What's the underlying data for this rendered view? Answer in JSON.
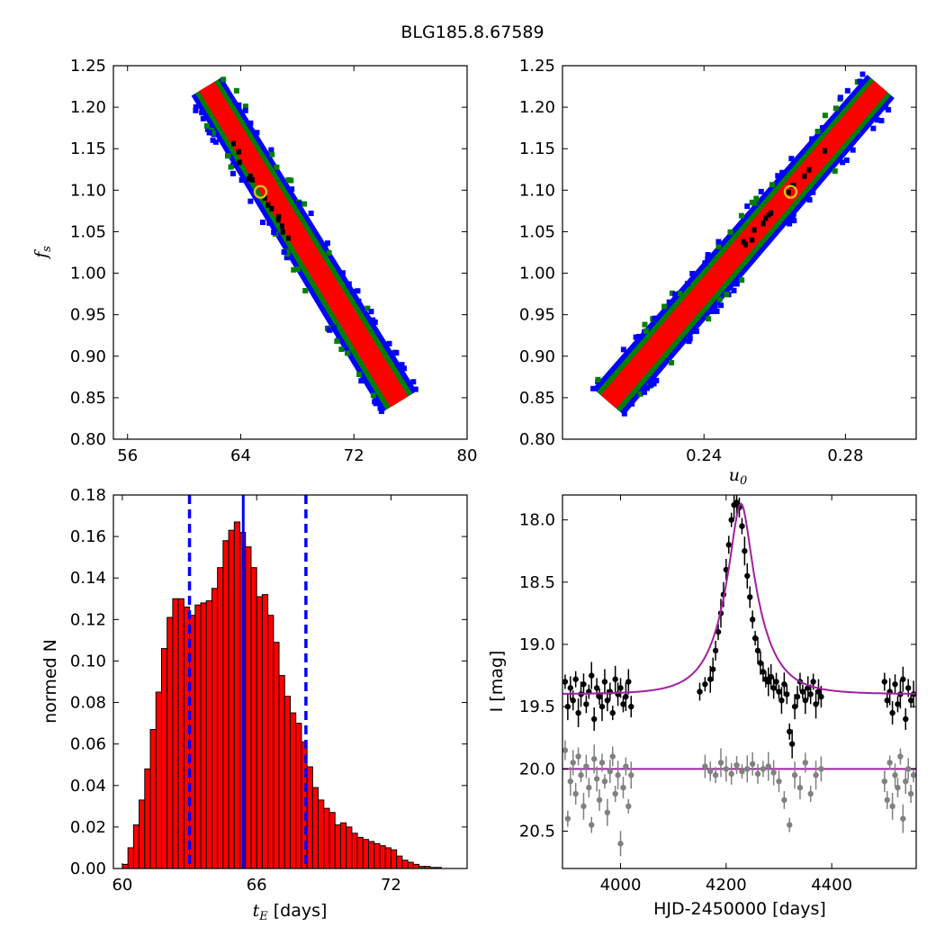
{
  "title": "BLG185.8.67589",
  "chart_data": [
    {
      "type": "heatmap",
      "panel": "top-left",
      "xlabel": "",
      "ylabel": "f_s",
      "xlim": [
        55,
        80
      ],
      "ylim": [
        0.8,
        1.25
      ],
      "xticks": [
        "56",
        "64",
        "72",
        "80"
      ],
      "yticks": [
        "0.80",
        "0.85",
        "0.90",
        "0.95",
        "1.00",
        "1.05",
        "1.10",
        "1.15",
        "1.20",
        "1.25"
      ],
      "colors": {
        "outer": "#0000ff",
        "mid": "#008000",
        "inner": "#ff0000",
        "best": "#000000",
        "marker": "#d8c020"
      },
      "band": {
        "top": [
          61.6,
          1.225
        ],
        "bottom": [
          75.2,
          0.845
        ],
        "best": [
          65.4,
          1.098
        ]
      }
    },
    {
      "type": "heatmap",
      "panel": "top-right",
      "xlabel": "u_0",
      "ylabel": "",
      "xlim": [
        0.2,
        0.3
      ],
      "ylim": [
        0.8,
        1.25
      ],
      "xticks": [
        "0.24",
        "0.28"
      ],
      "yticks": [
        "0.80",
        "0.85",
        "0.90",
        "0.95",
        "1.00",
        "1.05",
        "1.10",
        "1.15",
        "1.20",
        "1.25"
      ],
      "colors": {
        "outer": "#0000ff",
        "mid": "#008000",
        "inner": "#ff0000",
        "best": "#000000",
        "marker": "#d8c020"
      },
      "band": {
        "top": [
          0.29,
          1.225
        ],
        "bottom": [
          0.213,
          0.845
        ],
        "best": [
          0.2645,
          1.098
        ]
      }
    },
    {
      "type": "bar",
      "panel": "bottom-left",
      "xlabel": "t_E",
      "xlabel_unit": "[days]",
      "ylabel": "normed N",
      "xlim": [
        59.6,
        75.4
      ],
      "ylim": [
        0,
        0.18
      ],
      "xticks": [
        "60",
        "66",
        "72"
      ],
      "yticks": [
        "0.00",
        "0.02",
        "0.04",
        "0.06",
        "0.08",
        "0.10",
        "0.12",
        "0.14",
        "0.16",
        "0.18"
      ],
      "bin_start": 60.0,
      "bin_width": 0.25,
      "values": [
        0.002,
        0.01,
        0.021,
        0.033,
        0.048,
        0.067,
        0.085,
        0.106,
        0.121,
        0.13,
        0.13,
        0.126,
        0.122,
        0.127,
        0.128,
        0.129,
        0.135,
        0.145,
        0.158,
        0.163,
        0.167,
        0.162,
        0.155,
        0.145,
        0.131,
        0.132,
        0.122,
        0.109,
        0.093,
        0.083,
        0.075,
        0.07,
        0.061,
        0.049,
        0.039,
        0.033,
        0.029,
        0.027,
        0.021,
        0.022,
        0.02,
        0.017,
        0.015,
        0.014,
        0.013,
        0.012,
        0.011,
        0.01,
        0.009,
        0.006,
        0.004,
        0.003,
        0.002,
        0.001,
        0.001,
        0.0005,
        0.0005
      ],
      "median": 65.4,
      "lower": 63.0,
      "upper": 68.2,
      "colors": {
        "bar": "#ff0000",
        "edge": "#000000",
        "lines": "#0000ff"
      }
    },
    {
      "type": "scatter",
      "panel": "bottom-right",
      "xlabel": "HJD-2450000 [days]",
      "ylabel": "I [mag]",
      "xlim": [
        3890,
        4560
      ],
      "ylim": [
        20.8,
        17.8
      ],
      "xticks": [
        "4000",
        "4200",
        "4400"
      ],
      "yticks": [
        "18.0",
        "18.5",
        "19.0",
        "19.5",
        "20.0",
        "20.5"
      ],
      "model": {
        "t0": 4228,
        "tE": 65.4,
        "u0": 0.2645,
        "base": 19.4,
        "peak": 17.87
      },
      "residual_base": 20.0,
      "series": [
        {
          "color": "#000000",
          "x": [
            3895,
            3900,
            3905,
            3910,
            3915,
            3920,
            3925,
            3930,
            3935,
            3940,
            3945,
            3950,
            3955,
            3960,
            3965,
            3970,
            3975,
            3980,
            3985,
            3990,
            3995,
            4000,
            4005,
            4010,
            4015,
            4020,
            4150,
            4160,
            4170,
            4175,
            4180,
            4185,
            4190,
            4195,
            4200,
            4205,
            4210,
            4215,
            4220,
            4225,
            4230,
            4235,
            4240,
            4245,
            4250,
            4255,
            4260,
            4265,
            4270,
            4275,
            4280,
            4285,
            4290,
            4295,
            4300,
            4305,
            4310,
            4315,
            4320,
            4325,
            4330,
            4335,
            4340,
            4345,
            4350,
            4355,
            4360,
            4365,
            4370,
            4375,
            4380,
            4500,
            4505,
            4510,
            4515,
            4520,
            4525,
            4530,
            4535,
            4540,
            4545,
            4550,
            4555
          ],
          "y": [
            19.3,
            19.5,
            19.35,
            19.45,
            19.28,
            19.55,
            19.4,
            19.32,
            19.48,
            19.38,
            19.25,
            19.6,
            19.35,
            19.42,
            19.5,
            19.3,
            19.45,
            19.38,
            19.55,
            19.28,
            19.4,
            19.35,
            19.48,
            19.42,
            19.3,
            19.5,
            19.38,
            19.32,
            19.28,
            19.2,
            19.05,
            18.9,
            18.75,
            18.6,
            18.4,
            18.2,
            18.0,
            17.88,
            17.86,
            17.9,
            18.05,
            18.25,
            18.45,
            18.62,
            18.8,
            18.95,
            19.05,
            19.15,
            19.22,
            19.28,
            19.3,
            19.26,
            19.35,
            19.3,
            19.38,
            19.45,
            19.32,
            19.4,
            19.7,
            19.8,
            19.5,
            19.42,
            19.3,
            19.38,
            19.45,
            19.35,
            19.4,
            19.3,
            19.48,
            19.38,
            19.42,
            19.3,
            19.45,
            19.38,
            19.55,
            19.32,
            19.48,
            19.4,
            19.28,
            19.6,
            19.35,
            19.45,
            19.4
          ]
        },
        {
          "color": "#808080",
          "x": [
            3895,
            3900,
            3905,
            3910,
            3915,
            3920,
            3925,
            3930,
            3935,
            3940,
            3945,
            3950,
            3955,
            3960,
            3965,
            3970,
            3975,
            3980,
            3985,
            3990,
            3995,
            4000,
            4005,
            4010,
            4015,
            4020,
            4160,
            4170,
            4180,
            4190,
            4200,
            4210,
            4220,
            4230,
            4240,
            4250,
            4260,
            4270,
            4280,
            4290,
            4300,
            4310,
            4320,
            4330,
            4340,
            4350,
            4360,
            4370,
            4380,
            4500,
            4505,
            4510,
            4515,
            4520,
            4525,
            4530,
            4535,
            4540,
            4545,
            4550,
            4555
          ],
          "y": [
            19.85,
            20.4,
            20.1,
            19.95,
            20.2,
            19.9,
            20.05,
            20.3,
            19.98,
            20.15,
            20.45,
            19.92,
            20.08,
            20.25,
            19.95,
            20.1,
            20.35,
            20.02,
            19.9,
            20.2,
            20.05,
            20.6,
            20.15,
            19.98,
            20.3,
            20.05,
            19.98,
            20.02,
            20.05,
            19.95,
            20.0,
            20.04,
            19.97,
            20.02,
            20.0,
            19.96,
            20.04,
            20.0,
            19.98,
            20.03,
            20.1,
            20.25,
            20.45,
            20.05,
            20.15,
            19.95,
            20.2,
            20.05,
            20.0,
            20.1,
            20.25,
            19.95,
            20.3,
            20.05,
            20.15,
            19.9,
            20.4,
            20.1,
            20.0,
            20.2,
            20.05
          ]
        }
      ],
      "colors": {
        "model": "#a020a0"
      }
    }
  ]
}
